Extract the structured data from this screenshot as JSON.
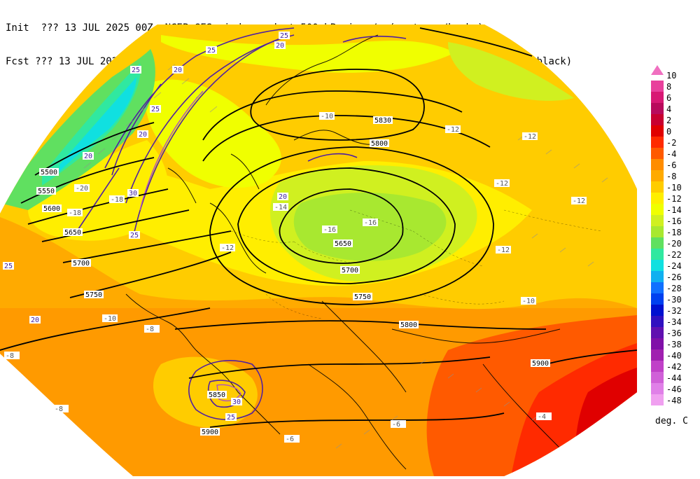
{
  "header": {
    "line1": "Init  ??? 13 JUL 2025 00Z  NCEP GFS wind speed at 500 hPa in m/s (contours/barbs)",
    "line2": "Fcst ??? 13 JUL 2025 00Z  temperature (shaded/dotted) and geopotential height at 500 hPa (black)"
  },
  "legend": {
    "units": "deg. C",
    "entries": [
      {
        "label": "10",
        "color": "#f070c0"
      },
      {
        "label": "8",
        "color": "#e8409c"
      },
      {
        "label": "6",
        "color": "#d81874"
      },
      {
        "label": "4",
        "color": "#b80a5c"
      },
      {
        "label": "2",
        "color": "#c80030"
      },
      {
        "label": "0",
        "color": "#e00000"
      },
      {
        "label": "-2",
        "color": "#ff2a00"
      },
      {
        "label": "-4",
        "color": "#ff5a00"
      },
      {
        "label": "-6",
        "color": "#ff8c00"
      },
      {
        "label": "-8",
        "color": "#ffaa00"
      },
      {
        "label": "-10",
        "color": "#ffcc00"
      },
      {
        "label": "-12",
        "color": "#ffee00"
      },
      {
        "label": "-14",
        "color": "#f0ff00"
      },
      {
        "label": "-16",
        "color": "#d0f020"
      },
      {
        "label": "-18",
        "color": "#a8e830"
      },
      {
        "label": "-20",
        "color": "#60e060"
      },
      {
        "label": "-22",
        "color": "#30e8a0"
      },
      {
        "label": "-24",
        "color": "#10e0e0"
      },
      {
        "label": "-26",
        "color": "#10b0f0"
      },
      {
        "label": "-28",
        "color": "#1070ff"
      },
      {
        "label": "-30",
        "color": "#0040f0"
      },
      {
        "label": "-32",
        "color": "#0010d0"
      },
      {
        "label": "-34",
        "color": "#3010c0"
      },
      {
        "label": "-36",
        "color": "#6010b0"
      },
      {
        "label": "-38",
        "color": "#8010a8"
      },
      {
        "label": "-40",
        "color": "#a020b0"
      },
      {
        "label": "-42",
        "color": "#c040c8"
      },
      {
        "label": "-44",
        "color": "#d060d8"
      },
      {
        "label": "-46",
        "color": "#e080e8"
      },
      {
        "label": "-48",
        "color": "#f0a0f0"
      }
    ]
  },
  "height_labels": [
    "5500",
    "5550",
    "5600",
    "5650",
    "5700",
    "5750",
    "5800",
    "5830",
    "5900",
    "5850",
    "5650",
    "5700",
    "5750",
    "5800",
    "5900"
  ],
  "wind_labels": [
    "25",
    "20",
    "25",
    "20",
    "25",
    "20",
    "25",
    "20",
    "30",
    "25",
    "20",
    "25",
    "20",
    "30",
    "25"
  ],
  "temp_labels": [
    "-16",
    "-16",
    "-14",
    "-12",
    "-12",
    "-12",
    "-12",
    "-10",
    "-10",
    "-10",
    "-8",
    "-8",
    "-8",
    "-6",
    "-6",
    "-4",
    "-18",
    "-20",
    "-18",
    "-12",
    "-12"
  ]
}
